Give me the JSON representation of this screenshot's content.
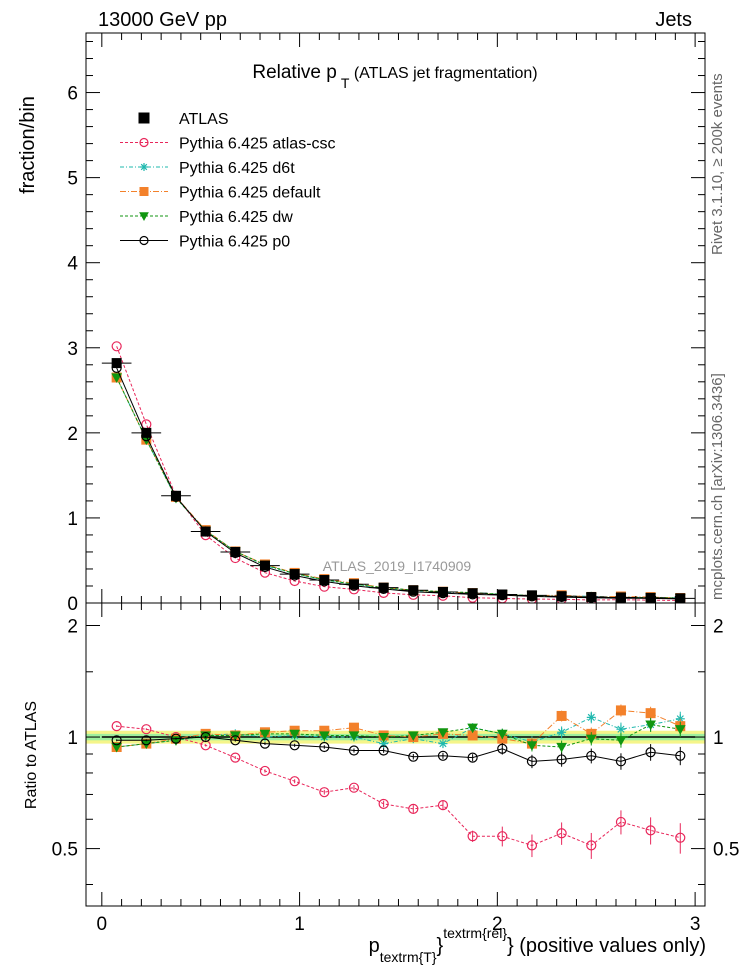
{
  "header": {
    "left": "13000 GeV pp",
    "right": "Jets"
  },
  "side_labels": {
    "rivet": "Rivet 3.1.10, ≥ 200k events",
    "mcplots": "mcplots.cern.ch [arXiv:1306.3436]"
  },
  "chart_data": {
    "type": "scatter",
    "title_main": "Relative p",
    "title_sub": "T",
    "title_suffix": " (ATLAS jet fragmentation)",
    "analysis_label": "ATLAS_2019_I1740909",
    "ylabel_top": "fraction/bin",
    "ylabel_bottom": "Ratio to ATLAS",
    "xlabel_main": "p",
    "xlabel_sub": "textrm{T}",
    "xlabel_sup": "textrm{rel}",
    "xlabel_suffix": "} (positive values only)",
    "xlabel_brace": "}",
    "xlim": [
      -0.08,
      3.05
    ],
    "ylim_top": [
      0,
      6.7
    ],
    "ylim_bottom": [
      0.35,
      2.3
    ],
    "x_ticks": [
      "0",
      "1",
      "2",
      "3"
    ],
    "y_ticks_top": [
      "0",
      "1",
      "2",
      "3",
      "4",
      "5",
      "6"
    ],
    "y_ticks_bottom": [
      "0.5",
      "1",
      "2"
    ],
    "x": [
      0.075,
      0.225,
      0.375,
      0.525,
      0.675,
      0.825,
      0.975,
      1.125,
      1.275,
      1.425,
      1.575,
      1.725,
      1.875,
      2.025,
      2.175,
      2.325,
      2.475,
      2.625,
      2.775,
      2.925
    ],
    "atlas": [
      2.82,
      2.0,
      1.26,
      0.84,
      0.6,
      0.44,
      0.34,
      0.27,
      0.22,
      0.18,
      0.15,
      0.13,
      0.115,
      0.1,
      0.09,
      0.08,
      0.07,
      0.065,
      0.06,
      0.055
    ],
    "band_half_widths": [
      0.02,
      0.04
    ],
    "legend": [
      {
        "name": "ATLAS",
        "color": "#000000",
        "marker": "square-filled",
        "dash": "none"
      },
      {
        "name": "Pythia 6.425 atlas-csc",
        "color": "#e8265a",
        "marker": "circle-open",
        "dash": "3,2"
      },
      {
        "name": "Pythia 6.425 d6t",
        "color": "#1fb8ae",
        "marker": "star",
        "dash": "4,2,1,2"
      },
      {
        "name": "Pythia 6.425 default",
        "color": "#f3812b",
        "marker": "square-filled",
        "dash": "6,2,1,2"
      },
      {
        "name": "Pythia 6.425 dw",
        "color": "#119611",
        "marker": "triangle-down",
        "dash": "3,2"
      },
      {
        "name": "Pythia 6.425 p0",
        "color": "#000000",
        "marker": "circle-open",
        "dash": "none"
      }
    ],
    "series": [
      {
        "name": "Pythia 6.425 atlas-csc",
        "ratio": [
          1.07,
          1.05,
          1.0,
          0.95,
          0.88,
          0.81,
          0.76,
          0.71,
          0.73,
          0.66,
          0.64,
          0.655,
          0.54,
          0.54,
          0.51,
          0.55,
          0.51,
          0.59,
          0.56,
          0.535
        ]
      },
      {
        "name": "Pythia 6.425 d6t",
        "ratio": [
          0.94,
          0.96,
          0.98,
          1.01,
          1.02,
          1.0,
          1.01,
          1.0,
          1.0,
          0.96,
          0.99,
          0.96,
          1.06,
          1.02,
          0.97,
          1.03,
          1.13,
          1.05,
          1.08,
          1.12
        ]
      },
      {
        "name": "Pythia 6.425 default",
        "ratio": [
          0.94,
          0.96,
          0.99,
          1.02,
          1.01,
          1.03,
          1.04,
          1.04,
          1.06,
          1.01,
          1.0,
          1.02,
          1.01,
          0.99,
          0.96,
          1.14,
          1.02,
          1.18,
          1.16,
          1.07
        ]
      },
      {
        "name": "Pythia 6.425 dw",
        "ratio": [
          0.94,
          0.96,
          0.98,
          1.01,
          1.01,
          1.02,
          1.02,
          1.01,
          1.01,
          1.0,
          1.01,
          1.03,
          1.06,
          1.02,
          0.95,
          0.94,
          0.99,
          0.98,
          1.08,
          1.05
        ]
      },
      {
        "name": "Pythia 6.425 p0",
        "ratio": [
          0.98,
          0.98,
          0.99,
          1.0,
          0.98,
          0.96,
          0.95,
          0.94,
          0.92,
          0.92,
          0.885,
          0.89,
          0.88,
          0.93,
          0.86,
          0.87,
          0.89,
          0.86,
          0.91,
          0.89
        ]
      }
    ]
  }
}
